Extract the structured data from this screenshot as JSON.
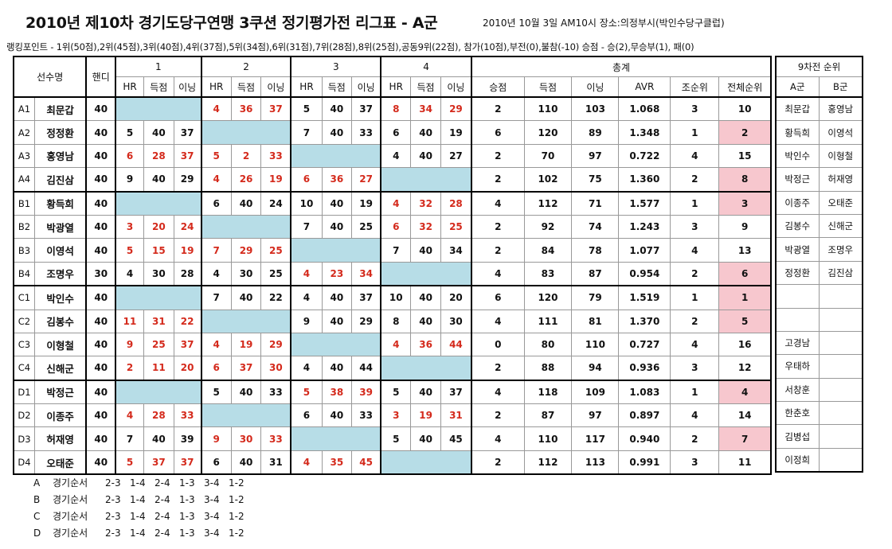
{
  "title": "2010년 제10차 경기도당구연맹 3쿠션 정기평가전 리그표 - A군",
  "date_info": "2010년 10월 3일 AM10시  장소:의정부시(박인수당구클럽)",
  "points_line": "랭킹포인트 - 1위(50점),2위(45점),3위(40점),4위(37점),5위(34점),6위(31점),7위(28점),8위(25점),공동9위(22점), 참가(10점),부전(0),불참(-10)  승점 - 승(2),무승부(1), 패(0)",
  "headers": {
    "player": "선수명",
    "handicap": "핸디",
    "games": [
      "1",
      "2",
      "3",
      "4"
    ],
    "hr": "HR",
    "score": "득점",
    "inning": "이닝",
    "total": "총계",
    "win_pts": "승점",
    "total_score": "득점",
    "total_inning": "이닝",
    "avr": "AVR",
    "group_rank": "조순위",
    "overall_rank": "전체순위"
  },
  "rows": [
    {
      "code": "A1",
      "name": "최문갑",
      "hd": "40",
      "g": [
        null,
        {
          "v": [
            "4",
            "36",
            "37"
          ],
          "w": false
        },
        {
          "v": [
            "5",
            "40",
            "37"
          ],
          "w": true
        },
        {
          "v": [
            "8",
            "34",
            "29"
          ],
          "w": false
        }
      ],
      "pts": "2",
      "sc": "110",
      "inn": "103",
      "avr": "1.068",
      "gr": "3",
      "or": "10",
      "pink": false
    },
    {
      "code": "A2",
      "name": "정정환",
      "hd": "40",
      "g": [
        {
          "v": [
            "5",
            "40",
            "37"
          ],
          "w": true
        },
        null,
        {
          "v": [
            "7",
            "40",
            "33"
          ],
          "w": true
        },
        {
          "v": [
            "6",
            "40",
            "19"
          ],
          "w": true
        }
      ],
      "pts": "6",
      "sc": "120",
      "inn": "89",
      "avr": "1.348",
      "gr": "1",
      "or": "2",
      "pink": true
    },
    {
      "code": "A3",
      "name": "홍영남",
      "hd": "40",
      "g": [
        {
          "v": [
            "6",
            "28",
            "37"
          ],
          "w": false
        },
        {
          "v": [
            "5",
            "2",
            "33"
          ],
          "w": false
        },
        null,
        {
          "v": [
            "4",
            "40",
            "27"
          ],
          "w": true
        }
      ],
      "pts": "2",
      "sc": "70",
      "inn": "97",
      "avr": "0.722",
      "gr": "4",
      "or": "15",
      "pink": false
    },
    {
      "code": "A4",
      "name": "김진삼",
      "hd": "40",
      "g": [
        {
          "v": [
            "9",
            "40",
            "29"
          ],
          "w": true
        },
        {
          "v": [
            "4",
            "26",
            "19"
          ],
          "w": false
        },
        {
          "v": [
            "6",
            "36",
            "27"
          ],
          "w": false
        },
        null
      ],
      "pts": "2",
      "sc": "102",
      "inn": "75",
      "avr": "1.360",
      "gr": "2",
      "or": "8",
      "pink": true
    },
    {
      "code": "B1",
      "name": "황득희",
      "hd": "40",
      "g": [
        null,
        {
          "v": [
            "6",
            "40",
            "24"
          ],
          "w": true
        },
        {
          "v": [
            "10",
            "40",
            "19"
          ],
          "w": true
        },
        {
          "v": [
            "4",
            "32",
            "28"
          ],
          "w": false
        }
      ],
      "pts": "4",
      "sc": "112",
      "inn": "71",
      "avr": "1.577",
      "gr": "1",
      "or": "3",
      "pink": true
    },
    {
      "code": "B2",
      "name": "박광열",
      "hd": "40",
      "g": [
        {
          "v": [
            "3",
            "20",
            "24"
          ],
          "w": false
        },
        null,
        {
          "v": [
            "7",
            "40",
            "25"
          ],
          "w": true
        },
        {
          "v": [
            "6",
            "32",
            "25"
          ],
          "w": false
        }
      ],
      "pts": "2",
      "sc": "92",
      "inn": "74",
      "avr": "1.243",
      "gr": "3",
      "or": "9",
      "pink": false
    },
    {
      "code": "B3",
      "name": "이영석",
      "hd": "40",
      "g": [
        {
          "v": [
            "5",
            "15",
            "19"
          ],
          "w": false
        },
        {
          "v": [
            "7",
            "29",
            "25"
          ],
          "w": false
        },
        null,
        {
          "v": [
            "7",
            "40",
            "34"
          ],
          "w": true
        }
      ],
      "pts": "2",
      "sc": "84",
      "inn": "78",
      "avr": "1.077",
      "gr": "4",
      "or": "13",
      "pink": false
    },
    {
      "code": "B4",
      "name": "조명우",
      "hd": "30",
      "g": [
        {
          "v": [
            "4",
            "30",
            "28"
          ],
          "w": true
        },
        {
          "v": [
            "4",
            "30",
            "25"
          ],
          "w": true
        },
        {
          "v": [
            "4",
            "23",
            "34"
          ],
          "w": false
        },
        null
      ],
      "pts": "4",
      "sc": "83",
      "inn": "87",
      "avr": "0.954",
      "gr": "2",
      "or": "6",
      "pink": true
    },
    {
      "code": "C1",
      "name": "박인수",
      "hd": "40",
      "g": [
        null,
        {
          "v": [
            "7",
            "40",
            "22"
          ],
          "w": true
        },
        {
          "v": [
            "4",
            "40",
            "37"
          ],
          "w": true
        },
        {
          "v": [
            "10",
            "40",
            "20"
          ],
          "w": true
        }
      ],
      "pts": "6",
      "sc": "120",
      "inn": "79",
      "avr": "1.519",
      "gr": "1",
      "or": "1",
      "pink": true
    },
    {
      "code": "C2",
      "name": "김봉수",
      "hd": "40",
      "g": [
        {
          "v": [
            "11",
            "31",
            "22"
          ],
          "w": false
        },
        null,
        {
          "v": [
            "9",
            "40",
            "29"
          ],
          "w": true
        },
        {
          "v": [
            "8",
            "40",
            "30"
          ],
          "w": true
        }
      ],
      "pts": "4",
      "sc": "111",
      "inn": "81",
      "avr": "1.370",
      "gr": "2",
      "or": "5",
      "pink": true
    },
    {
      "code": "C3",
      "name": "이형철",
      "hd": "40",
      "g": [
        {
          "v": [
            "9",
            "25",
            "37"
          ],
          "w": false
        },
        {
          "v": [
            "4",
            "19",
            "29"
          ],
          "w": false
        },
        null,
        {
          "v": [
            "4",
            "36",
            "44"
          ],
          "w": false
        }
      ],
      "pts": "0",
      "sc": "80",
      "inn": "110",
      "avr": "0.727",
      "gr": "4",
      "or": "16",
      "pink": false
    },
    {
      "code": "C4",
      "name": "신해군",
      "hd": "40",
      "g": [
        {
          "v": [
            "2",
            "11",
            "20"
          ],
          "w": false
        },
        {
          "v": [
            "6",
            "37",
            "30"
          ],
          "w": false
        },
        {
          "v": [
            "4",
            "40",
            "44"
          ],
          "w": true
        },
        null
      ],
      "pts": "2",
      "sc": "88",
      "inn": "94",
      "avr": "0.936",
      "gr": "3",
      "or": "12",
      "pink": false
    },
    {
      "code": "D1",
      "name": "박정근",
      "hd": "40",
      "g": [
        null,
        {
          "v": [
            "5",
            "40",
            "33"
          ],
          "w": true
        },
        {
          "v": [
            "5",
            "38",
            "39"
          ],
          "w": false
        },
        {
          "v": [
            "5",
            "40",
            "37"
          ],
          "w": true
        }
      ],
      "pts": "4",
      "sc": "118",
      "inn": "109",
      "avr": "1.083",
      "gr": "1",
      "or": "4",
      "pink": true
    },
    {
      "code": "D2",
      "name": "이종주",
      "hd": "40",
      "g": [
        {
          "v": [
            "4",
            "28",
            "33"
          ],
          "w": false
        },
        null,
        {
          "v": [
            "6",
            "40",
            "33"
          ],
          "w": true
        },
        {
          "v": [
            "3",
            "19",
            "31"
          ],
          "w": false
        }
      ],
      "pts": "2",
      "sc": "87",
      "inn": "97",
      "avr": "0.897",
      "gr": "4",
      "or": "14",
      "pink": false
    },
    {
      "code": "D3",
      "name": "허재영",
      "hd": "40",
      "g": [
        {
          "v": [
            "7",
            "40",
            "39"
          ],
          "w": true
        },
        {
          "v": [
            "9",
            "30",
            "33"
          ],
          "w": false
        },
        null,
        {
          "v": [
            "5",
            "40",
            "45"
          ],
          "w": true
        }
      ],
      "pts": "4",
      "sc": "110",
      "inn": "117",
      "avr": "0.940",
      "gr": "2",
      "or": "7",
      "pink": true
    },
    {
      "code": "D4",
      "name": "오태준",
      "hd": "40",
      "g": [
        {
          "v": [
            "5",
            "37",
            "37"
          ],
          "w": false
        },
        {
          "v": [
            "6",
            "40",
            "31"
          ],
          "w": true
        },
        {
          "v": [
            "4",
            "35",
            "45"
          ],
          "w": false
        },
        null
      ],
      "pts": "2",
      "sc": "112",
      "inn": "113",
      "avr": "0.991",
      "gr": "3",
      "or": "11",
      "pink": false
    }
  ],
  "side": {
    "title": "9차전 순위",
    "col_a": "A군",
    "col_b": "B군",
    "rows": [
      [
        "최문갑",
        "홍영남"
      ],
      [
        "황득희",
        "이영석"
      ],
      [
        "박인수",
        "이형철"
      ],
      [
        "박정근",
        "허재영"
      ],
      [
        "이종주",
        "오태준"
      ],
      [
        "김봉수",
        "신해군"
      ],
      [
        "박광열",
        "조명우"
      ],
      [
        "정정환",
        "김진삼"
      ],
      [
        "",
        ""
      ],
      [
        "",
        ""
      ],
      [
        "고경남",
        ""
      ],
      [
        "우태하",
        ""
      ],
      [
        "서창훈",
        ""
      ],
      [
        "한춘호",
        ""
      ],
      [
        "김병섭",
        ""
      ],
      [
        "이정희",
        ""
      ]
    ]
  },
  "orders": [
    {
      "group": "A",
      "label": "경기순서",
      "seq": [
        "2-3",
        "1-4",
        "2-4",
        "1-3",
        "3-4",
        "1-2"
      ]
    },
    {
      "group": "B",
      "label": "경기순서",
      "seq": [
        "2-3",
        "1-4",
        "2-4",
        "1-3",
        "3-4",
        "1-2"
      ]
    },
    {
      "group": "C",
      "label": "경기순서",
      "seq": [
        "2-3",
        "1-4",
        "2-4",
        "1-3",
        "3-4",
        "1-2"
      ]
    },
    {
      "group": "D",
      "label": "경기순서",
      "seq": [
        "2-3",
        "1-4",
        "2-4",
        "1-3",
        "3-4",
        "1-2"
      ]
    }
  ],
  "colors": {
    "win_text": "#111111",
    "loss_text": "#d42a1c",
    "bye_cell": "#b7dde7",
    "top_rank": "#f7c7ce"
  }
}
